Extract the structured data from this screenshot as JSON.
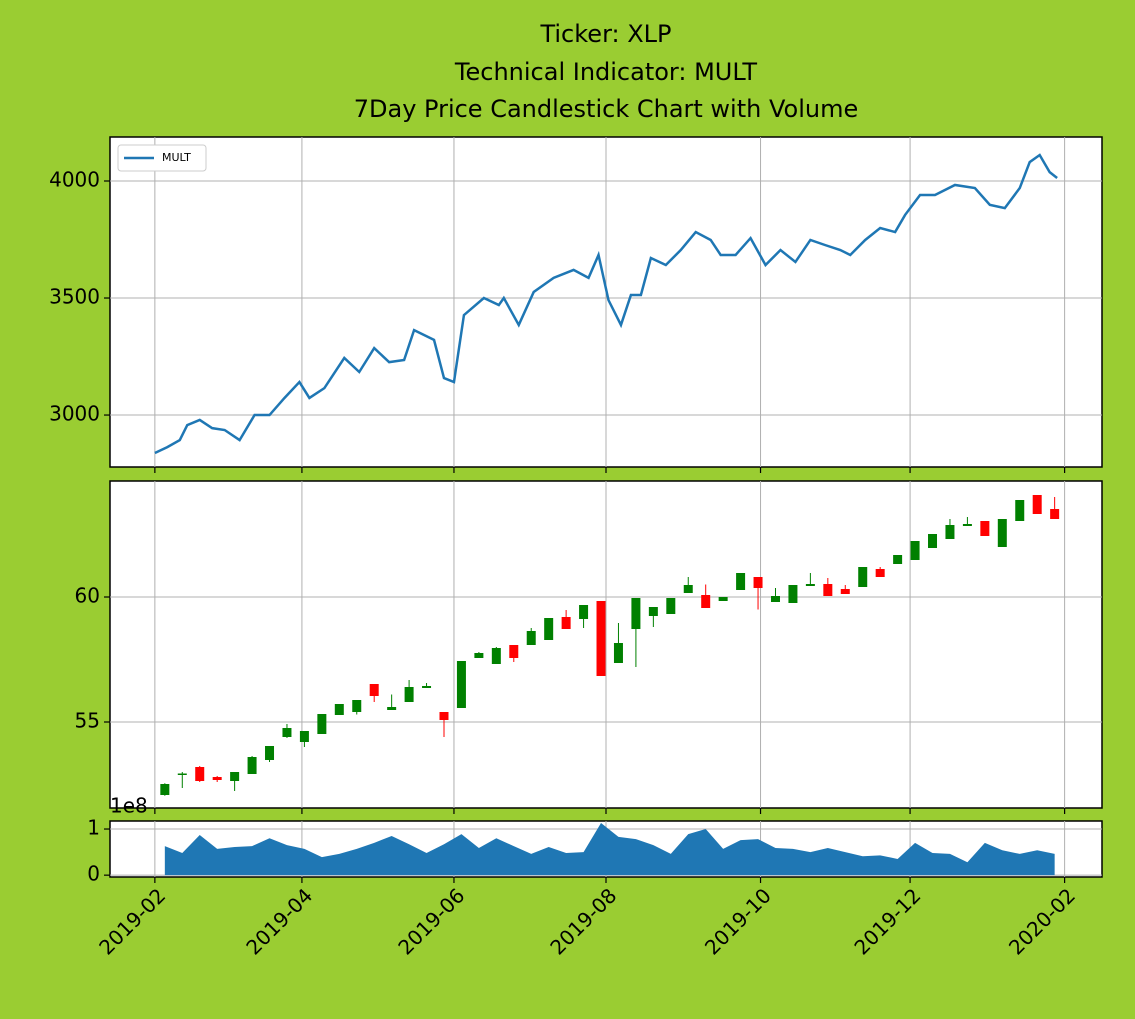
{
  "chart_data": [
    {
      "type": "line",
      "title": [
        "Ticker: XLP",
        "Technical Indicator: MULT",
        "7Day Price Candlestick Chart with Volume"
      ],
      "x": [
        0,
        5,
        10,
        13,
        18,
        23,
        28,
        34,
        40,
        46,
        52,
        58,
        62,
        68,
        76,
        82,
        88,
        94,
        100,
        104,
        112,
        116,
        120,
        124,
        132,
        138,
        140,
        146,
        152,
        160,
        168,
        174,
        178,
        182,
        187,
        191,
        195,
        199,
        205,
        211,
        217,
        223,
        227,
        233,
        239,
        245,
        251,
        257,
        263,
        269,
        275,
        279,
        285,
        291,
        297,
        301,
        307,
        313,
        321,
        329,
        335,
        341,
        347,
        351,
        355,
        359,
        362
      ],
      "series": [
        {
          "name": "MULT",
          "color": "#1f77b4",
          "values": [
            2838,
            2863,
            2893,
            2957,
            2979,
            2944,
            2936,
            2893,
            3000,
            3000,
            3073,
            3141,
            3073,
            3115,
            3244,
            3184,
            3286,
            3226,
            3235,
            3363,
            3321,
            3158,
            3141,
            3427,
            3500,
            3470,
            3500,
            3385,
            3526,
            3586,
            3620,
            3586,
            3684,
            3491,
            3385,
            3513,
            3513,
            3671,
            3641,
            3705,
            3782,
            3748,
            3684,
            3684,
            3756,
            3641,
            3705,
            3654,
            3748,
            3726,
            3705,
            3684,
            3748,
            3799,
            3782,
            3855,
            3940,
            3940,
            3983,
            3970,
            3898,
            3884,
            3970,
            4081,
            4111,
            4038,
            4013
          ]
        }
      ],
      "ylim": [
        2778,
        4188
      ],
      "yticks": [
        3000,
        3500,
        4000
      ],
      "grid": true,
      "legend": "upper left"
    },
    {
      "type": "candlestick",
      "x": [
        4,
        11,
        18,
        25,
        32,
        39,
        46,
        53,
        60,
        67,
        74,
        81,
        88,
        95,
        102,
        109,
        116,
        123,
        130,
        137,
        144,
        151,
        158,
        165,
        172,
        179,
        186,
        193,
        200,
        207,
        214,
        221,
        228,
        235,
        242,
        249,
        256,
        263,
        270,
        277,
        284,
        291,
        298,
        305,
        312,
        319,
        326,
        333,
        340,
        347,
        354,
        361
      ],
      "open": [
        52.08,
        52.9,
        53.2,
        52.8,
        52.64,
        52.92,
        53.48,
        54.4,
        54.2,
        54.52,
        55.28,
        55.4,
        56.52,
        55.48,
        55.8,
        56.36,
        55.4,
        55.56,
        57.56,
        57.32,
        58.08,
        58.08,
        58.28,
        59.2,
        59.12,
        59.84,
        57.36,
        58.72,
        59.24,
        59.32,
        60.16,
        60.08,
        59.84,
        60.28,
        60.8,
        59.8,
        59.76,
        60.44,
        60.52,
        60.32,
        60.4,
        61.12,
        61.32,
        61.48,
        61.96,
        62.32,
        62.84,
        63.04,
        62.0,
        63.04,
        64.08,
        63.52
      ],
      "high": [
        52.55,
        53.0,
        53.24,
        52.84,
        53.0,
        53.64,
        54.04,
        54.92,
        54.64,
        55.32,
        55.72,
        55.88,
        56.52,
        56.1,
        56.68,
        56.56,
        55.4,
        57.44,
        57.8,
        58.0,
        58.08,
        58.76,
        59.16,
        59.48,
        59.68,
        59.84,
        58.96,
        59.96,
        59.6,
        59.96,
        60.8,
        60.5,
        60.0,
        60.96,
        60.8,
        60.36,
        60.48,
        60.96,
        60.76,
        60.48,
        61.2,
        61.2,
        61.68,
        62.24,
        62.52,
        63.12,
        63.2,
        63.04,
        63.12,
        63.88,
        64.08,
        64.0
      ],
      "low": [
        52.05,
        52.36,
        52.6,
        52.6,
        52.24,
        52.92,
        53.4,
        54.36,
        54.0,
        54.52,
        55.28,
        55.3,
        55.8,
        55.48,
        55.8,
        56.36,
        54.4,
        55.56,
        57.56,
        57.32,
        57.4,
        58.08,
        58.28,
        58.72,
        58.76,
        56.84,
        57.36,
        57.2,
        58.8,
        59.32,
        60.16,
        59.56,
        59.84,
        60.28,
        59.5,
        59.8,
        59.76,
        60.44,
        60.04,
        60.12,
        60.4,
        60.8,
        61.32,
        61.48,
        61.96,
        62.32,
        62.84,
        62.44,
        62.0,
        63.04,
        63.32,
        63.12
      ],
      "close": [
        52.52,
        52.94,
        52.64,
        52.68,
        53.0,
        53.6,
        54.04,
        54.76,
        54.64,
        55.32,
        55.72,
        55.88,
        56.04,
        55.6,
        56.4,
        56.44,
        55.08,
        57.44,
        57.76,
        57.96,
        57.56,
        58.64,
        59.16,
        58.72,
        59.68,
        56.84,
        58.16,
        59.96,
        59.6,
        59.96,
        60.48,
        59.56,
        60.0,
        60.96,
        60.36,
        60.04,
        60.48,
        60.52,
        60.04,
        60.12,
        61.2,
        60.8,
        61.68,
        62.24,
        62.52,
        62.88,
        62.92,
        62.44,
        63.12,
        63.88,
        63.32,
        63.12
      ],
      "up_color": "green",
      "down_color": "red",
      "ylim": [
        51.56,
        64.64
      ],
      "yticks": [
        55,
        60
      ],
      "grid": true
    },
    {
      "type": "area",
      "x": [
        4,
        11,
        18,
        25,
        32,
        39,
        46,
        53,
        60,
        67,
        74,
        81,
        88,
        95,
        102,
        109,
        116,
        123,
        130,
        137,
        144,
        151,
        158,
        165,
        172,
        179,
        186,
        193,
        200,
        207,
        214,
        221,
        228,
        235,
        242,
        249,
        256,
        263,
        270,
        277,
        284,
        291,
        298,
        305,
        312,
        319,
        326,
        333,
        340,
        347,
        354,
        361
      ],
      "values": [
        0.63,
        0.48,
        0.87,
        0.57,
        0.61,
        0.63,
        0.8,
        0.65,
        0.57,
        0.39,
        0.46,
        0.57,
        0.7,
        0.85,
        0.67,
        0.48,
        0.67,
        0.89,
        0.59,
        0.8,
        0.63,
        0.46,
        0.61,
        0.48,
        0.5,
        1.13,
        0.83,
        0.78,
        0.65,
        0.46,
        0.89,
        1.0,
        0.57,
        0.76,
        0.78,
        0.59,
        0.57,
        0.5,
        0.59,
        0.5,
        0.41,
        0.43,
        0.35,
        0.7,
        0.48,
        0.46,
        0.28,
        0.7,
        0.54,
        0.46,
        0.54,
        0.46
      ],
      "color": "#1f77b4",
      "offset_text": "1e8",
      "ylim": [
        -0.04,
        1.174
      ],
      "yticks": [
        0,
        1
      ],
      "grid": true,
      "xlim": [
        -18,
        380
      ],
      "xticks": [
        {
          "value": 0,
          "label": "2019-02"
        },
        {
          "value": 59,
          "label": "2019-04"
        },
        {
          "value": 120,
          "label": "2019-06"
        },
        {
          "value": 181,
          "label": "2019-08"
        },
        {
          "value": 243,
          "label": "2019-10"
        },
        {
          "value": 303,
          "label": "2019-12"
        },
        {
          "value": 365,
          "label": "2020-02"
        }
      ]
    }
  ]
}
